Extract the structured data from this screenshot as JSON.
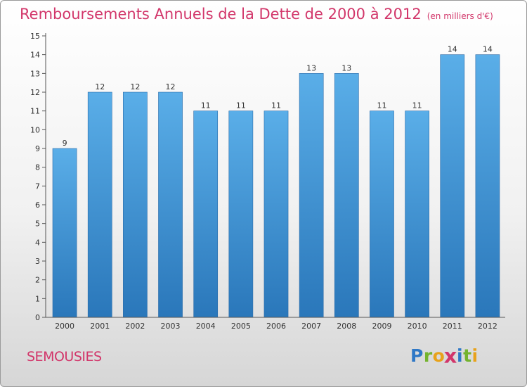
{
  "chart_data": {
    "type": "bar",
    "title": "Remboursements Annuels de la Dette de 2000 à 2012",
    "unit": "(en milliers d'€)",
    "categories": [
      "2000",
      "2001",
      "2002",
      "2003",
      "2004",
      "2005",
      "2006",
      "2007",
      "2008",
      "2009",
      "2010",
      "2011",
      "2012"
    ],
    "values": [
      9,
      12,
      12,
      12,
      11,
      11,
      11,
      13,
      13,
      11,
      11,
      14,
      14
    ],
    "data_labels": [
      "9",
      "12",
      "12",
      "12",
      "11",
      "11",
      "11",
      "13",
      "13",
      "11",
      "11",
      "14",
      "14"
    ],
    "ylim": [
      0,
      15
    ],
    "yticks": [
      0,
      1,
      2,
      3,
      4,
      5,
      6,
      7,
      8,
      9,
      10,
      11,
      12,
      13,
      14,
      15
    ],
    "xlabel": "",
    "ylabel": "",
    "grid": false,
    "bar_color_top": "#5aaee8",
    "bar_color_bottom": "#2a77ba"
  },
  "footer": {
    "commune": "SEMOUSIES",
    "brand_letters": [
      "P",
      "r",
      "o",
      "x",
      "i",
      "t",
      "i"
    ]
  },
  "colors": {
    "title": "#d2366a",
    "axis_text": "#333333"
  }
}
